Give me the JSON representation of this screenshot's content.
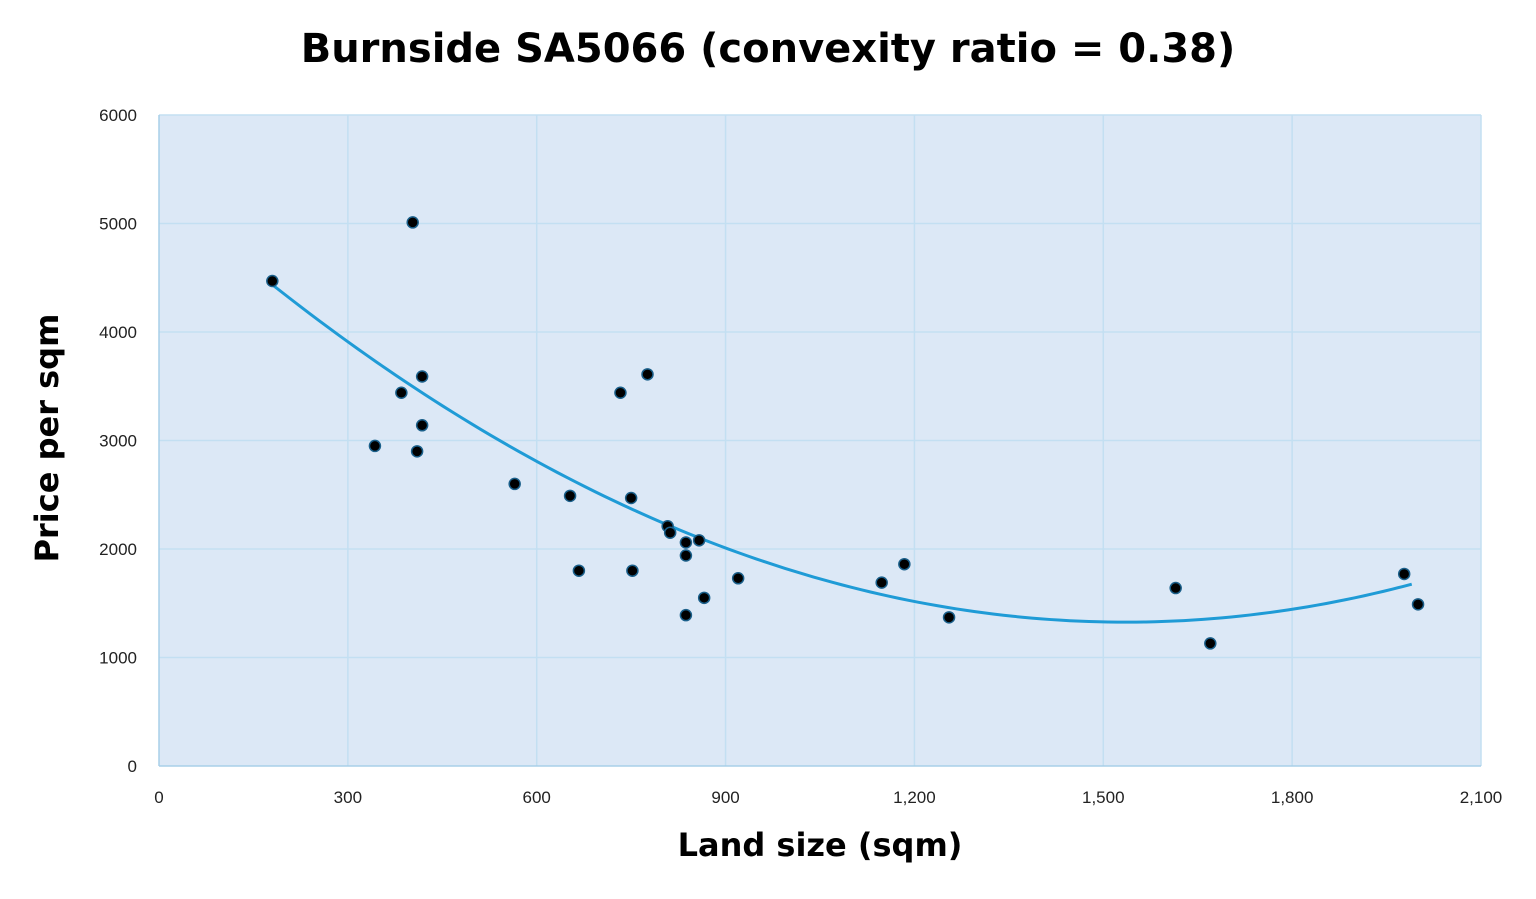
{
  "chart_data": {
    "type": "scatter",
    "title": "Burnside SA5066 (convexity ratio = 0.38)",
    "xlabel": "Land size (sqm)",
    "ylabel": "Price per sqm",
    "xlim": [
      0,
      2100
    ],
    "ylim": [
      0,
      6000
    ],
    "x_ticks": [
      0,
      300,
      600,
      900,
      1200,
      1500,
      1800,
      2100
    ],
    "x_tick_labels": [
      "0",
      "300",
      "600",
      "900",
      "1,200",
      "1,500",
      "1,800",
      "2,100"
    ],
    "y_ticks": [
      0,
      1000,
      2000,
      3000,
      4000,
      5000,
      6000
    ],
    "y_tick_labels": [
      "0",
      "1000",
      "2000",
      "3000",
      "4000",
      "5000",
      "6000"
    ],
    "grid": true,
    "colors": {
      "plot_background": "#dce8f6",
      "grid": "#c3dff2",
      "trendline": "#1f9bd6",
      "marker_fill": "#000000",
      "marker_edge": "#1a5f8a"
    },
    "points": [
      {
        "x": 180,
        "y": 4470
      },
      {
        "x": 403,
        "y": 5010
      },
      {
        "x": 343,
        "y": 2950
      },
      {
        "x": 385,
        "y": 3440
      },
      {
        "x": 418,
        "y": 3590
      },
      {
        "x": 418,
        "y": 3140
      },
      {
        "x": 410,
        "y": 2900
      },
      {
        "x": 565,
        "y": 2600
      },
      {
        "x": 653,
        "y": 2490
      },
      {
        "x": 667,
        "y": 1800
      },
      {
        "x": 733,
        "y": 3440
      },
      {
        "x": 776,
        "y": 3610
      },
      {
        "x": 750,
        "y": 2470
      },
      {
        "x": 752,
        "y": 1800
      },
      {
        "x": 808,
        "y": 2210
      },
      {
        "x": 812,
        "y": 2150
      },
      {
        "x": 837,
        "y": 2060
      },
      {
        "x": 858,
        "y": 2080
      },
      {
        "x": 837,
        "y": 1940
      },
      {
        "x": 866,
        "y": 1550
      },
      {
        "x": 837,
        "y": 1390
      },
      {
        "x": 920,
        "y": 1730
      },
      {
        "x": 1148,
        "y": 1690
      },
      {
        "x": 1184,
        "y": 1860
      },
      {
        "x": 1255,
        "y": 1370
      },
      {
        "x": 1615,
        "y": 1640
      },
      {
        "x": 1670,
        "y": 1130
      },
      {
        "x": 1978,
        "y": 1770
      },
      {
        "x": 2000,
        "y": 1490
      }
    ],
    "trendline": {
      "type": "polynomial-2",
      "x_range": [
        180,
        1990
      ],
      "coefficients": [
        5317.5,
        -5.1995,
        0.0016932
      ]
    }
  }
}
